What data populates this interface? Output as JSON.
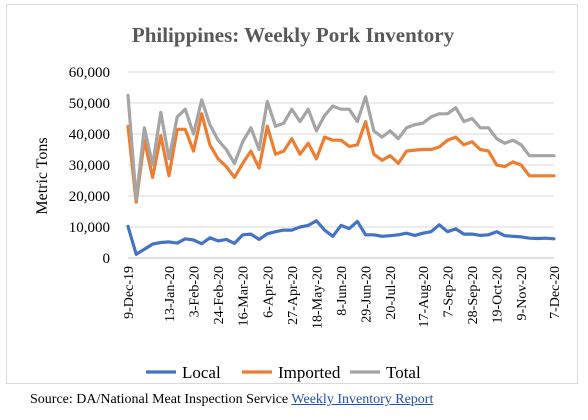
{
  "source": {
    "prefix": "Source:  DA/National Meat Inspection Service ",
    "link_text": "Weekly Inventory Report"
  },
  "chart_data": {
    "type": "line",
    "title": "Philippines: Weekly Pork Inventory",
    "ylabel": "Metric Tons",
    "xlabel": "",
    "ylim": [
      0,
      60000
    ],
    "yticks": [
      0,
      10000,
      20000,
      30000,
      40000,
      50000,
      60000
    ],
    "ytick_labels": [
      "0",
      "10,000",
      "20,000",
      "30,000",
      "40,000",
      "50,000",
      "60,000"
    ],
    "grid": true,
    "legend_position": "bottom",
    "x_tick_labels": [
      "9-Dec-19",
      "13-Jan-20",
      "3-Feb-20",
      "24-Feb-20",
      "16-Mar-20",
      "6-Apr-20",
      "27-Apr-20",
      "18-May-20",
      "8-Jun-20",
      "29-Jun-20",
      "20-Jul-20",
      "17-Aug-20",
      "7-Sep-20",
      "28-Sep-20",
      "19-Oct-20",
      "9-Nov-20",
      "7-Dec-20"
    ],
    "x_tick_index": [
      0,
      5,
      8,
      11,
      14,
      17,
      20,
      23,
      26,
      29,
      32,
      36,
      39,
      42,
      45,
      48,
      52
    ],
    "series": [
      {
        "name": "Local",
        "color": "#4472c4",
        "values": [
          10200,
          1200,
          2800,
          4500,
          5000,
          5200,
          4800,
          6200,
          5800,
          4600,
          6500,
          5500,
          6000,
          4700,
          7500,
          7700,
          6000,
          7800,
          8500,
          9000,
          9000,
          10000,
          10500,
          12000,
          9000,
          7000,
          10500,
          9500,
          11800,
          7500,
          7500,
          7000,
          7200,
          7500,
          8000,
          7300,
          8000,
          8500,
          10700,
          8500,
          9400,
          7700,
          7700,
          7300,
          7500,
          8500,
          7200,
          7000,
          6800,
          6400,
          6300,
          6400,
          6200
        ]
      },
      {
        "name": "Imported",
        "color": "#ed7d31",
        "values": [
          42500,
          18000,
          38000,
          26000,
          39500,
          26500,
          41500,
          41500,
          34500,
          46500,
          36500,
          32000,
          29500,
          26000,
          30500,
          34500,
          29000,
          42500,
          33500,
          34500,
          38500,
          33500,
          37000,
          32000,
          39000,
          38000,
          38000,
          36000,
          36500,
          44000,
          33500,
          31500,
          33000,
          30500,
          34500,
          34800,
          35000,
          35000,
          35800,
          38000,
          39000,
          36500,
          37500,
          35000,
          34500,
          30000,
          29500,
          31000,
          30000,
          26500,
          26500,
          26500,
          26500
        ]
      },
      {
        "name": "Total",
        "color": "#a5a5a5",
        "values": [
          52500,
          19000,
          42000,
          30000,
          47000,
          32000,
          45500,
          48000,
          40000,
          51000,
          43000,
          38000,
          35000,
          30500,
          37500,
          42000,
          35000,
          50500,
          42500,
          43500,
          48000,
          44000,
          48000,
          41000,
          46000,
          49000,
          48000,
          48000,
          44000,
          52000,
          41000,
          39000,
          41000,
          38500,
          42000,
          43000,
          43500,
          45500,
          46500,
          46500,
          48500,
          44000,
          45000,
          42000,
          42000,
          38500,
          37000,
          38000,
          36500,
          33000,
          33000,
          33000,
          33000
        ]
      }
    ]
  }
}
